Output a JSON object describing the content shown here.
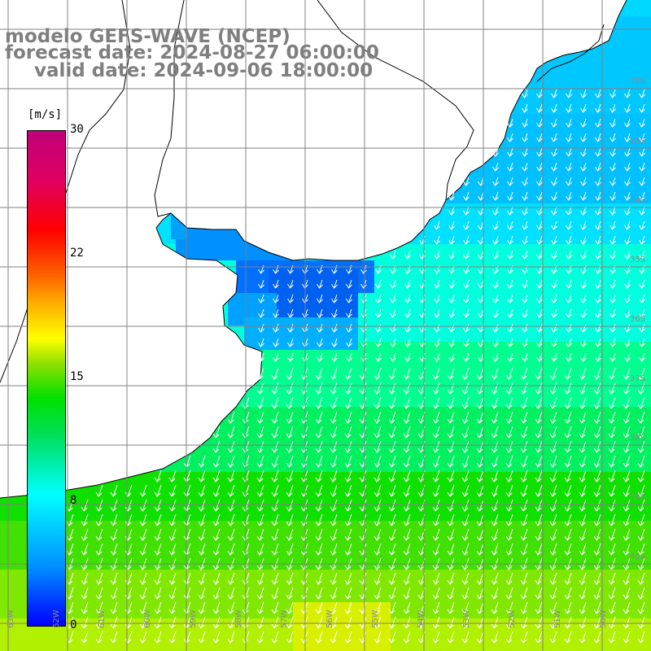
{
  "title": {
    "line1": "modelo GEFS-WAVE (NCEP)",
    "line2": "forecast date: 2024-08-27 06:00:00",
    "line3": "valid date: 2024-09-06 18:00:00"
  },
  "colorbar": {
    "unit": "[m/s]",
    "ticks": [
      "30",
      "22",
      "15",
      "8",
      "0"
    ],
    "tick_values": [
      30,
      22,
      15,
      8,
      0
    ],
    "min": 0,
    "max": 30,
    "stops": [
      "#0000ff",
      "#0090ff",
      "#00ffff",
      "#00e000",
      "#ffff00",
      "#ff6000",
      "#ff0000",
      "#c0007a"
    ]
  },
  "map": {
    "lat_labels": [
      "32S",
      "33S",
      "34S",
      "35S",
      "36S",
      "37S",
      "38S",
      "39S",
      "40S"
    ],
    "lon_labels": [
      "63W",
      "62W",
      "61W",
      "60W",
      "59W",
      "58W",
      "57W",
      "56W",
      "55W",
      "54W",
      "53W",
      "52W",
      "51W",
      "50W"
    ],
    "land_color": "#ffffff",
    "coastline_color": "#000000",
    "grid_color": "#808080",
    "arrow_color": "#ffffff",
    "wind_direction": "from north-northeast (arrows pointing south-southwest)"
  }
}
